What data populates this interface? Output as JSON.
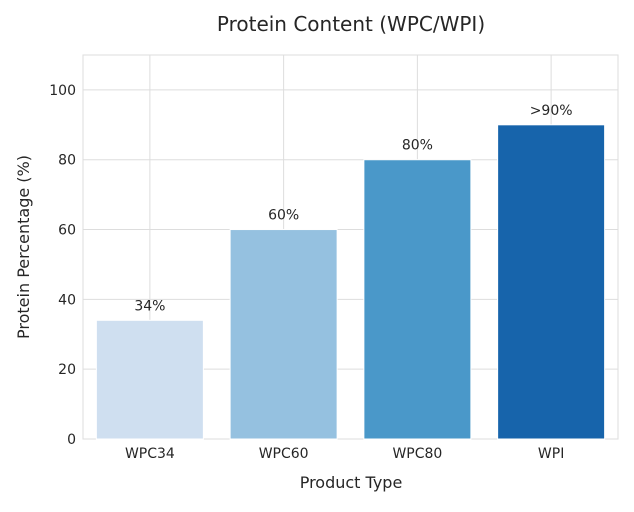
{
  "chart_data": {
    "type": "bar",
    "title": "Protein Content (WPC/WPI)",
    "xlabel": "Product Type",
    "ylabel": "Protein Percentage (%)",
    "categories": [
      "WPC34",
      "WPC60",
      "WPC80",
      "WPI"
    ],
    "values": [
      34,
      60,
      80,
      90
    ],
    "data_labels": [
      "34%",
      "60%",
      "80%",
      ">90%"
    ],
    "colors": [
      "#cfdff0",
      "#95c1e0",
      "#4a98c9",
      "#1764ab"
    ],
    "ylim": [
      0,
      110
    ],
    "yticks": [
      0,
      20,
      40,
      60,
      80,
      100
    ],
    "grid": true
  }
}
